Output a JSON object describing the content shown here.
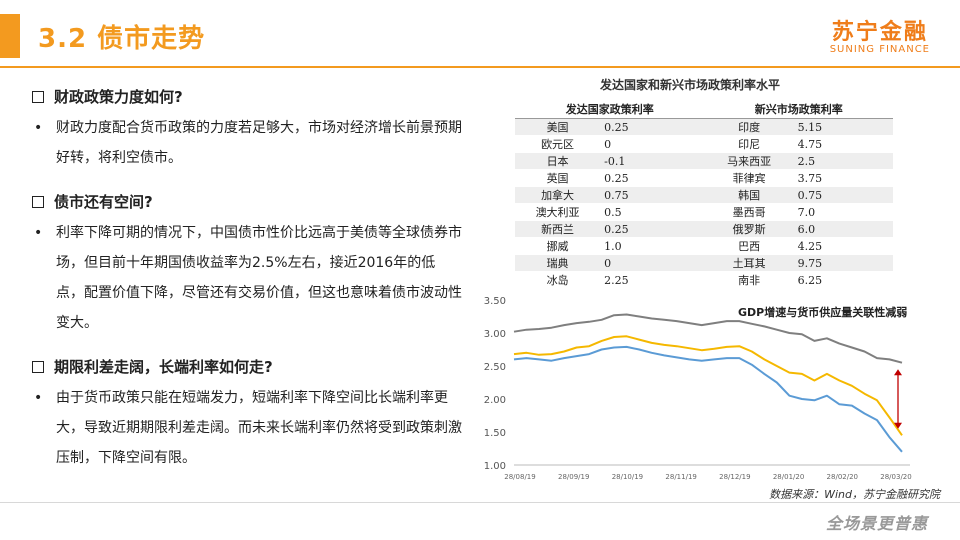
{
  "header": {
    "title": "3.2 债市走势",
    "logo_cn": "苏宁金融",
    "logo_en": "SUNING FINANCE"
  },
  "sections": [
    {
      "heading": "财政政策力度如何?",
      "bullets": [
        "财政力度配合货币政策的力度若足够大，市场对经济增长前景预期好转，将利空债市。"
      ]
    },
    {
      "heading": "债市还有空间?",
      "bullets": [
        "利率下降可期的情况下，中国债市性价比远高于美债等全球债券市场，但目前十年期国债收益率为2.5%左右，接近2016年的低点，配置价值下降，尽管还有交易价值，但这也意味着债市波动性变大。"
      ]
    },
    {
      "heading": "期限利差走阔，长端利率如何走?",
      "bullets": [
        "由于货币政策只能在短端发力，短端利率下降空间比长端利率更大，导致近期期限利差走阔。而未来长端利率仍然将受到政策刺激压制，下降空间有限。"
      ]
    }
  ],
  "table": {
    "title": "发达国家和新兴市场政策利率水平",
    "header_left": "发达国家政策利率",
    "header_right": "新兴市场政策利率",
    "rows": [
      [
        "美国",
        "0.25",
        "印度",
        "5.15"
      ],
      [
        "欧元区",
        "0",
        "印尼",
        "4.75"
      ],
      [
        "日本",
        "-0.1",
        "马来西亚",
        "2.5"
      ],
      [
        "英国",
        "0.25",
        "菲律宾",
        "3.75"
      ],
      [
        "加拿大",
        "0.75",
        "韩国",
        "0.75"
      ],
      [
        "澳大利亚",
        "0.5",
        "墨西哥",
        "7.0"
      ],
      [
        "新西兰",
        "0.25",
        "俄罗斯",
        "6.0"
      ],
      [
        "挪威",
        "1.0",
        "巴西",
        "4.25"
      ],
      [
        "瑞典",
        "0",
        "土耳其",
        "9.75"
      ],
      [
        "冰岛",
        "2.25",
        "南非",
        "6.25"
      ]
    ]
  },
  "chart_data": {
    "type": "line",
    "title": "GDP增速与货币供应量关联性减弱",
    "x_ticks": [
      "28/08/19",
      "28/09/19",
      "28/10/19",
      "28/11/19",
      "28/12/19",
      "28/01/20",
      "28/02/20",
      "28/03/20"
    ],
    "y_ticks": [
      "3.50",
      "3.00",
      "2.50",
      "2.00",
      "1.50",
      "1.00"
    ],
    "ylim": [
      1.0,
      3.5
    ],
    "grid": false,
    "colors": {
      "gray": "#7f7f7f",
      "yellow": "#f5b800",
      "blue": "#5b9bd5",
      "arrow": "#c00000"
    },
    "series": [
      {
        "color": "gray",
        "values": [
          3.02,
          3.05,
          3.06,
          3.08,
          3.12,
          3.15,
          3.17,
          3.2,
          3.27,
          3.28,
          3.25,
          3.22,
          3.2,
          3.18,
          3.15,
          3.12,
          3.15,
          3.18,
          3.18,
          3.14,
          3.1,
          3.05,
          3.0,
          2.98,
          2.88,
          2.92,
          2.84,
          2.78,
          2.72,
          2.62,
          2.6,
          2.55
        ]
      },
      {
        "color": "yellow",
        "values": [
          2.68,
          2.7,
          2.67,
          2.68,
          2.72,
          2.78,
          2.8,
          2.88,
          2.94,
          2.95,
          2.9,
          2.85,
          2.82,
          2.8,
          2.77,
          2.74,
          2.76,
          2.79,
          2.8,
          2.72,
          2.6,
          2.5,
          2.4,
          2.38,
          2.28,
          2.38,
          2.28,
          2.2,
          2.08,
          1.98,
          1.72,
          1.45
        ]
      },
      {
        "color": "blue",
        "values": [
          2.6,
          2.62,
          2.6,
          2.58,
          2.62,
          2.65,
          2.68,
          2.75,
          2.78,
          2.79,
          2.75,
          2.7,
          2.66,
          2.63,
          2.6,
          2.58,
          2.6,
          2.62,
          2.62,
          2.52,
          2.38,
          2.25,
          2.05,
          2.0,
          1.98,
          2.05,
          1.92,
          1.9,
          1.78,
          1.68,
          1.42,
          1.2
        ]
      }
    ]
  },
  "source": "数据来源：Wind，苏宁金融研究院",
  "slogan": "全场景更普惠"
}
